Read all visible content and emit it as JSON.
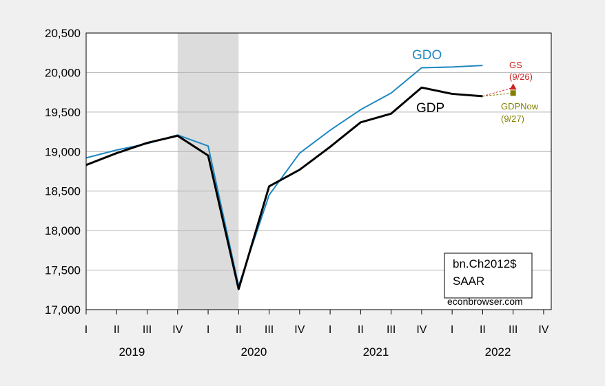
{
  "chart_data": {
    "type": "line",
    "title": "",
    "xlabel": "",
    "ylabel": "",
    "ylim": [
      17000,
      20500
    ],
    "yticks": [
      17000,
      17500,
      18000,
      18500,
      19000,
      19500,
      20000,
      20500
    ],
    "ytick_labels": [
      "17,000",
      "17,500",
      "18,000",
      "18,500",
      "19,000",
      "19,500",
      "20,000",
      "20,500"
    ],
    "quarter_labels": [
      "I",
      "II",
      "III",
      "IV",
      "I",
      "II",
      "III",
      "IV",
      "I",
      "II",
      "III",
      "IV",
      "I",
      "II",
      "III",
      "IV"
    ],
    "year_labels": [
      "2019",
      "2020",
      "2021",
      "2022"
    ],
    "grid": "horizontal",
    "recession_shading": {
      "from": "2019Q4",
      "to": "2020Q2",
      "color": "#dcdcdc"
    },
    "x": [
      "2019Q1",
      "2019Q2",
      "2019Q3",
      "2019Q4",
      "2020Q1",
      "2020Q2",
      "2020Q3",
      "2020Q4",
      "2021Q1",
      "2021Q2",
      "2021Q3",
      "2021Q4",
      "2022Q1",
      "2022Q2"
    ],
    "series": [
      {
        "name": "GDO",
        "color": "#1f87c0",
        "values": [
          18920,
          19020,
          19100,
          19210,
          19070,
          17300,
          18450,
          18980,
          19270,
          19530,
          19740,
          20060,
          20070,
          20090
        ]
      },
      {
        "name": "GDP",
        "color": "#000000",
        "values": [
          18830,
          18980,
          19110,
          19200,
          18950,
          17260,
          18560,
          18770,
          19060,
          19370,
          19480,
          19810,
          19730,
          19700
        ]
      }
    ],
    "forecasts": [
      {
        "name": "GS",
        "date_label": "(9/26)",
        "color": "#cc2222",
        "value": 19810,
        "quarter": "2022Q3"
      },
      {
        "name": "GDPNow",
        "date_label": "(9/27)",
        "color": "#808000",
        "value": 19740,
        "quarter": "2022Q3"
      }
    ],
    "annotations": {
      "units_line1": "bn.Ch2012$",
      "units_line2": "SAAR",
      "source": "econbrowser.com"
    }
  }
}
